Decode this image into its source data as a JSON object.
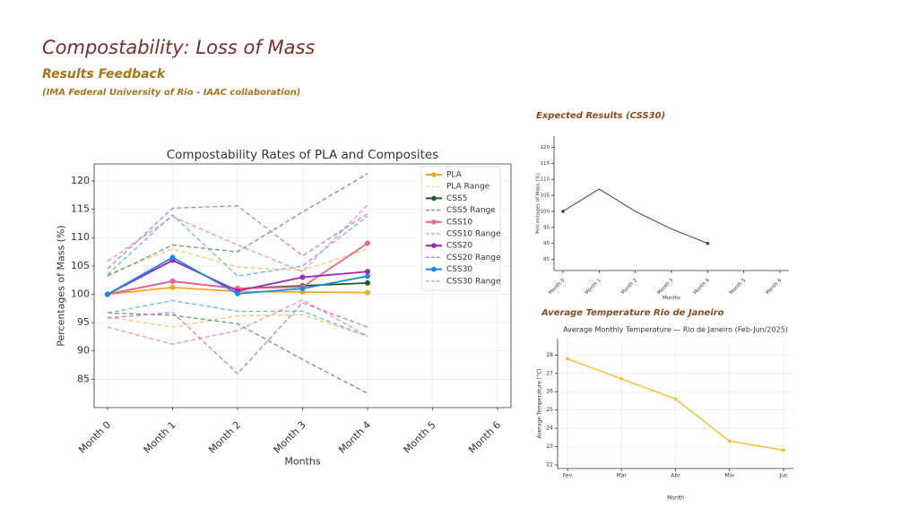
{
  "header": {
    "title": "Compostability: Loss of Mass",
    "subtitle": "Results Feedback",
    "note": "(IMA Federal University of Rio - IAAC collaboration)",
    "expected_heading": "Expected Results (CSS30)",
    "temperature_heading": "Average Temperature Rio de Janeiro"
  },
  "chart_data": [
    {
      "type": "line",
      "title": "Compostability Rates of PLA and Composites",
      "xlabel": "Months",
      "ylabel": "Percentages of Mass (%)",
      "categories": [
        "Month 0",
        "Month 1",
        "Month 2",
        "Month 3",
        "Month 4",
        "Month 5",
        "Month 6"
      ],
      "ylim": [
        80,
        123
      ],
      "yticks": [
        85,
        90,
        95,
        100,
        105,
        110,
        115,
        120
      ],
      "grid": true,
      "legend": "upper right",
      "series": [
        {
          "name": "PLA",
          "color": "#f5a623",
          "markers": true,
          "values": [
            100,
            101.2,
            100.5,
            100.4,
            100.3,
            null,
            null
          ]
        },
        {
          "name": "PLA Range",
          "color": "#f8c86a",
          "dashed": true,
          "values": [
            103.5,
            108,
            104.8,
            104.2,
            108,
            null,
            null
          ]
        },
        {
          "name": "PLA Range",
          "color": "#f8c86a",
          "dashed": true,
          "values": [
            96,
            94.2,
            96.2,
            96.4,
            92.6,
            null,
            null
          ]
        },
        {
          "name": "CSS5",
          "color": "#1b5e20",
          "markers": true,
          "values": [
            100,
            102.3,
            101,
            101.5,
            102,
            null,
            null
          ]
        },
        {
          "name": "CSS5 Range",
          "color": "#6e9a6e",
          "dashed": true,
          "values": [
            103.2,
            108.7,
            107.5,
            114.5,
            121.3,
            null,
            null
          ]
        },
        {
          "name": "CSS5 Range",
          "color": "#6e9a6e",
          "dashed": true,
          "values": [
            96.7,
            96.3,
            94.8,
            88.5,
            82.5,
            null,
            null
          ]
        },
        {
          "name": "CSS10",
          "color": "#f06292",
          "markers": true,
          "values": [
            100,
            102.3,
            101,
            101.3,
            109,
            null,
            null
          ]
        },
        {
          "name": "CSS10 Range",
          "color": "#f48fb1",
          "dashed": true,
          "values": [
            105.8,
            113.7,
            108.7,
            104,
            115.8,
            null,
            null
          ]
        },
        {
          "name": "CSS10 Range",
          "color": "#f48fb1",
          "dashed": true,
          "values": [
            94.2,
            91.2,
            93.6,
            99,
            92.6,
            null,
            null
          ]
        },
        {
          "name": "CSS20",
          "color": "#9c27b0",
          "markers": true,
          "values": [
            100,
            106,
            100.6,
            103,
            104,
            null,
            null
          ]
        },
        {
          "name": "CSS20 Range",
          "color": "#c27ad0",
          "dashed": true,
          "values": [
            104.5,
            115.2,
            115.6,
            106.8,
            114.2,
            null,
            null
          ]
        },
        {
          "name": "CSS20 Range",
          "color": "#c27ad0",
          "dashed": true,
          "values": [
            95.8,
            96.8,
            86,
            98.5,
            94.2,
            null,
            null
          ]
        },
        {
          "name": "CSS30",
          "color": "#1e88e5",
          "markers": true,
          "values": [
            100,
            106.5,
            100.1,
            101,
            103.2,
            null,
            null
          ]
        },
        {
          "name": "CSS30 Range",
          "color": "#64b5f6",
          "dashed": true,
          "values": [
            103.5,
            114,
            103.2,
            105,
            113.8,
            null,
            null
          ]
        },
        {
          "name": "CSS30 Range",
          "color": "#64b5f6",
          "dashed": true,
          "values": [
            96.7,
            98.9,
            97,
            97,
            92.6,
            null,
            null
          ]
        }
      ]
    },
    {
      "type": "line",
      "xlabel": "Months",
      "ylabel": "Percentages of Mass (%)",
      "categories": [
        "Month 0",
        "Month 1",
        "Month 2",
        "Month 3",
        "Month 4",
        "Month 5",
        "Month 6"
      ],
      "ylim": [
        81.5,
        123.5
      ],
      "yticks": [
        85,
        90,
        95,
        100,
        105,
        110,
        115,
        120
      ],
      "grid": false,
      "series": [
        {
          "color": "#6d2e2e",
          "endpoints": true,
          "values": [
            100,
            107,
            100,
            94.5,
            90,
            null,
            null
          ]
        }
      ]
    },
    {
      "type": "line",
      "title": "Average Monthly Temperature — Rio de Janeiro (Feb-Jun/2025)",
      "xlabel": "Month",
      "ylabel": "Average Temperature (°C)",
      "categories": [
        "Fev",
        "Mar",
        "Abr",
        "Mai",
        "Jun"
      ],
      "ylim": [
        21.8,
        28.9
      ],
      "yticks": [
        22,
        23,
        24,
        25,
        26,
        27,
        28
      ],
      "grid": true,
      "series": [
        {
          "color": "#f5b82e",
          "markers": true,
          "values": [
            27.8,
            26.7,
            25.6,
            23.3,
            22.8
          ]
        }
      ]
    }
  ]
}
